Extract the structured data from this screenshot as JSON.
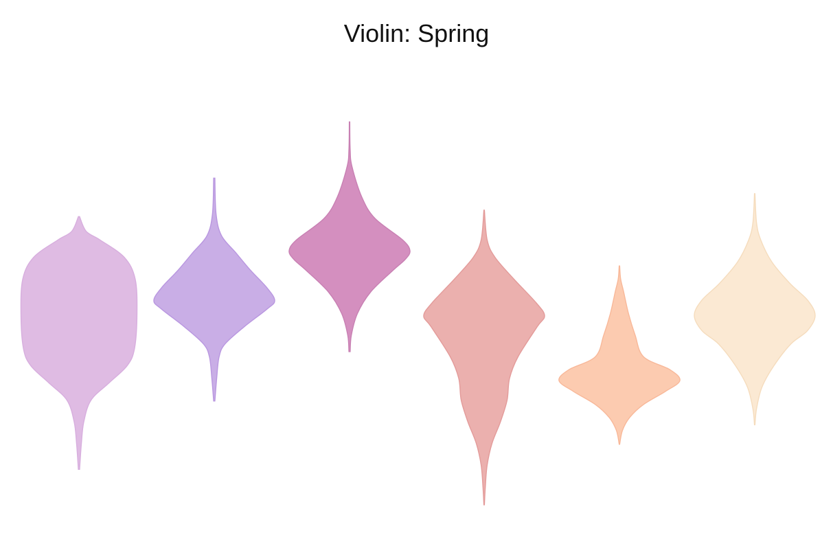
{
  "chart_data": {
    "type": "violin",
    "title": "Violin: Spring",
    "xlabel": "",
    "ylabel": "",
    "axes_visible": false,
    "grid": false,
    "ylim": [
      0,
      100
    ],
    "series": [
      {
        "color": "#dfbbe3",
        "stroke": "#d7aede",
        "min": 9.0,
        "max": 67.4,
        "density": [
          [
            9.0,
            0.01
          ],
          [
            15,
            0.04
          ],
          [
            20,
            0.08
          ],
          [
            25,
            0.2
          ],
          [
            29,
            0.5
          ],
          [
            33,
            0.8
          ],
          [
            37,
            0.92
          ],
          [
            45,
            0.96
          ],
          [
            53,
            0.93
          ],
          [
            58,
            0.75
          ],
          [
            62,
            0.35
          ],
          [
            64,
            0.12
          ],
          [
            67.4,
            0.01
          ]
        ]
      },
      {
        "color": "#c9aee6",
        "stroke": "#b997e0",
        "min": 24.8,
        "max": 76.3,
        "density": [
          [
            24.8,
            0.01
          ],
          [
            30,
            0.04
          ],
          [
            35,
            0.08
          ],
          [
            38,
            0.18
          ],
          [
            42,
            0.5
          ],
          [
            46,
            0.87
          ],
          [
            48,
            1.0
          ],
          [
            51,
            0.87
          ],
          [
            55,
            0.6
          ],
          [
            59,
            0.36
          ],
          [
            63,
            0.12
          ],
          [
            68,
            0.03
          ],
          [
            76.3,
            0.01
          ]
        ]
      },
      {
        "color": "#d48fbf",
        "stroke": "#c880b3",
        "min": 36.2,
        "max": 89.3,
        "density": [
          [
            36.2,
            0.01
          ],
          [
            40,
            0.03
          ],
          [
            45,
            0.13
          ],
          [
            50,
            0.35
          ],
          [
            55,
            0.72
          ],
          [
            57.5,
            0.92
          ],
          [
            59.5,
            1.0
          ],
          [
            62,
            0.88
          ],
          [
            67,
            0.42
          ],
          [
            72,
            0.2
          ],
          [
            79,
            0.04
          ],
          [
            83,
            0.01
          ],
          [
            89.3,
            0.0
          ]
        ]
      },
      {
        "color": "#ebb0ae",
        "stroke": "#e39b9a",
        "min": 0.8,
        "max": 68.9,
        "density": [
          [
            0.8,
            0.0
          ],
          [
            5,
            0.02
          ],
          [
            10,
            0.05
          ],
          [
            15,
            0.13
          ],
          [
            20,
            0.27
          ],
          [
            25,
            0.38
          ],
          [
            30,
            0.42
          ],
          [
            35,
            0.56
          ],
          [
            42,
            0.88
          ],
          [
            44.5,
            1.0
          ],
          [
            47.5,
            0.86
          ],
          [
            53,
            0.49
          ],
          [
            58,
            0.18
          ],
          [
            62,
            0.05
          ],
          [
            68.9,
            0.0
          ]
        ]
      },
      {
        "color": "#fccbb0",
        "stroke": "#f8b899",
        "min": 14.8,
        "max": 56.0,
        "density": [
          [
            14.8,
            0.0
          ],
          [
            18,
            0.05
          ],
          [
            21,
            0.17
          ],
          [
            24,
            0.4
          ],
          [
            27,
            0.76
          ],
          [
            29.5,
            1.0
          ],
          [
            32,
            0.84
          ],
          [
            35,
            0.4
          ],
          [
            40,
            0.26
          ],
          [
            45,
            0.15
          ],
          [
            50,
            0.07
          ],
          [
            53,
            0.02
          ],
          [
            56,
            0.0
          ]
        ]
      },
      {
        "color": "#fbe9d3",
        "stroke": "#f5dcbd",
        "min": 19.3,
        "max": 72.7,
        "density": [
          [
            19.3,
            0.0
          ],
          [
            23,
            0.03
          ],
          [
            28,
            0.12
          ],
          [
            33,
            0.32
          ],
          [
            38,
            0.6
          ],
          [
            41,
            0.87
          ],
          [
            44.5,
            1.0
          ],
          [
            48,
            0.88
          ],
          [
            52,
            0.58
          ],
          [
            57,
            0.28
          ],
          [
            62,
            0.1
          ],
          [
            66,
            0.03
          ],
          [
            72.7,
            0.0
          ]
        ]
      }
    ]
  }
}
